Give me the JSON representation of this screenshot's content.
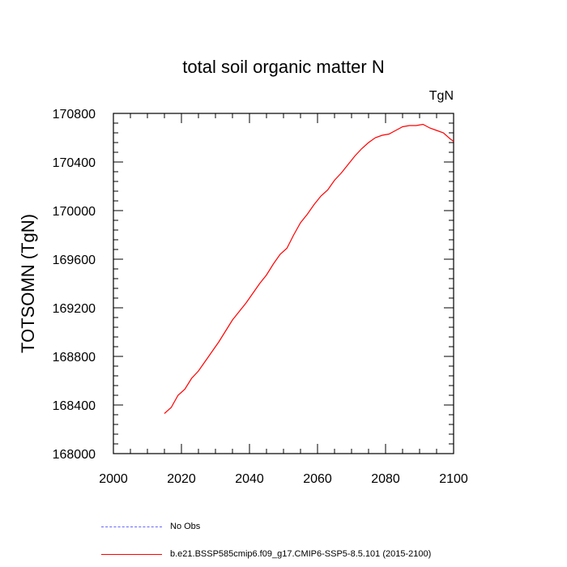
{
  "chart_data": {
    "type": "line",
    "title": "total soil organic matter N",
    "units": "TgN",
    "ylabel": "TOTSOMN  (TgN)",
    "xlabel": "",
    "xlim": [
      2000,
      2100
    ],
    "ylim": [
      168000,
      170800
    ],
    "x_ticks": [
      2000,
      2020,
      2040,
      2060,
      2080,
      2100
    ],
    "y_ticks": [
      168000,
      168400,
      168800,
      169200,
      169600,
      170000,
      170400,
      170800
    ],
    "grid": false,
    "series": [
      {
        "name": "b.e21.BSSP585cmip6.f09_g17.CMIP6-SSP5-8.5.101 (2015-2100)",
        "color": "#ff0000",
        "x": [
          2015,
          2017,
          2019,
          2021,
          2023,
          2025,
          2027,
          2029,
          2031,
          2033,
          2035,
          2037,
          2039,
          2041,
          2043,
          2045,
          2047,
          2049,
          2051,
          2053,
          2055,
          2057,
          2059,
          2061,
          2063,
          2065,
          2067,
          2069,
          2071,
          2073,
          2075,
          2077,
          2079,
          2081,
          2083,
          2085,
          2087,
          2089,
          2091,
          2093,
          2095,
          2097,
          2099,
          2100
        ],
        "y": [
          168330,
          168380,
          168480,
          168530,
          168620,
          168680,
          168760,
          168840,
          168920,
          169010,
          169100,
          169170,
          169240,
          169320,
          169400,
          169470,
          169560,
          169640,
          169690,
          169800,
          169900,
          169970,
          170050,
          170120,
          170170,
          170250,
          170310,
          170380,
          170450,
          170510,
          170560,
          170600,
          170620,
          170630,
          170660,
          170690,
          170700,
          170700,
          170710,
          170680,
          170660,
          170640,
          170590,
          170570
        ]
      },
      {
        "name": "No Obs",
        "color": "#6666ff",
        "dashed": true,
        "x": [],
        "y": []
      }
    ]
  }
}
